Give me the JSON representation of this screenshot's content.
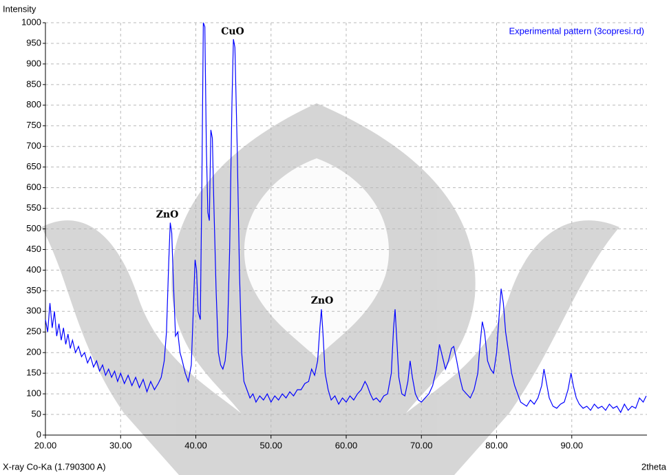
{
  "chart_data": {
    "type": "line",
    "y_label": "Intensity",
    "x_label": "2theta",
    "footer": "X-ray Co-Ka (1.790300 A)",
    "annotations": [
      "ZnO",
      "CuO",
      "ZnO"
    ],
    "xlim": [
      20,
      100
    ],
    "ylim": [
      0,
      1000
    ],
    "xticks": [
      {
        "value": 20,
        "label": "20.00"
      },
      {
        "value": 30,
        "label": "30.00"
      },
      {
        "value": 40,
        "label": "40.00"
      },
      {
        "value": 50,
        "label": "50.00"
      },
      {
        "value": 60,
        "label": "60.00"
      },
      {
        "value": 70,
        "label": "70.00"
      },
      {
        "value": 80,
        "label": "80.00"
      },
      {
        "value": 90,
        "label": "90.00"
      }
    ],
    "yticks": [
      0,
      50,
      100,
      150,
      200,
      250,
      300,
      350,
      400,
      450,
      500,
      550,
      600,
      650,
      700,
      750,
      800,
      850,
      900,
      950,
      1000
    ],
    "grid": true,
    "legend": "top-right",
    "x": [
      20.0,
      20.3,
      20.6,
      20.9,
      21.2,
      21.5,
      21.8,
      22.1,
      22.4,
      22.7,
      23.0,
      23.3,
      23.6,
      24.0,
      24.4,
      24.8,
      25.2,
      25.6,
      26.0,
      26.4,
      26.8,
      27.2,
      27.6,
      28.0,
      28.4,
      28.8,
      29.2,
      29.6,
      30.0,
      30.5,
      31.0,
      31.5,
      32.0,
      32.5,
      33.0,
      33.5,
      34.0,
      34.5,
      35.0,
      35.4,
      35.8,
      36.1,
      36.4,
      36.6,
      36.8,
      37.0,
      37.3,
      37.6,
      37.9,
      38.2,
      38.6,
      39.0,
      39.4,
      39.7,
      39.9,
      40.1,
      40.3,
      40.6,
      40.8,
      41.0,
      41.2,
      41.4,
      41.6,
      41.8,
      42.0,
      42.2,
      42.4,
      42.7,
      43.0,
      43.3,
      43.6,
      43.9,
      44.2,
      44.5,
      44.8,
      45.0,
      45.2,
      45.5,
      45.8,
      46.1,
      46.4,
      46.8,
      47.2,
      47.6,
      48.0,
      48.5,
      49.0,
      49.5,
      50.0,
      50.5,
      51.0,
      51.5,
      52.0,
      52.5,
      53.0,
      53.5,
      54.0,
      54.5,
      55.0,
      55.4,
      55.8,
      56.2,
      56.5,
      56.7,
      56.9,
      57.2,
      57.6,
      58.0,
      58.5,
      59.0,
      59.5,
      60.0,
      60.5,
      61.0,
      61.5,
      62.0,
      62.5,
      62.8,
      63.2,
      63.6,
      64.0,
      64.5,
      65.0,
      65.5,
      66.0,
      66.3,
      66.5,
      66.7,
      67.0,
      67.4,
      67.8,
      68.2,
      68.5,
      68.8,
      69.2,
      69.6,
      70.0,
      70.5,
      71.0,
      71.5,
      72.0,
      72.4,
      72.8,
      73.2,
      73.6,
      74.0,
      74.3,
      74.7,
      75.1,
      75.5,
      76.0,
      76.5,
      77.0,
      77.5,
      77.8,
      78.1,
      78.4,
      78.8,
      79.2,
      79.6,
      80.0,
      80.3,
      80.6,
      80.9,
      81.2,
      81.6,
      82.0,
      82.4,
      82.8,
      83.2,
      83.6,
      84.0,
      84.5,
      85.0,
      85.5,
      86.0,
      86.3,
      86.6,
      87.0,
      87.5,
      88.0,
      88.5,
      89.0,
      89.5,
      89.9,
      90.2,
      90.6,
      91.0,
      91.5,
      92.0,
      92.5,
      93.0,
      93.5,
      94.0,
      94.5,
      95.0,
      95.5,
      96.0,
      96.5,
      97.0,
      97.5,
      98.0,
      98.5,
      99.0,
      99.5,
      99.9
    ],
    "series": [
      {
        "name": "Experimental pattern (3copresi.rd)",
        "color": "#0000ff",
        "values": [
          280,
          250,
          320,
          260,
          300,
          240,
          270,
          230,
          260,
          220,
          245,
          210,
          230,
          200,
          215,
          190,
          200,
          175,
          190,
          165,
          180,
          155,
          170,
          145,
          160,
          140,
          155,
          130,
          150,
          125,
          145,
          120,
          140,
          115,
          135,
          105,
          130,
          110,
          125,
          140,
          180,
          250,
          420,
          515,
          490,
          380,
          240,
          250,
          200,
          180,
          150,
          130,
          170,
          320,
          425,
          400,
          300,
          280,
          600,
          1000,
          990,
          700,
          540,
          520,
          740,
          720,
          560,
          350,
          200,
          170,
          160,
          180,
          240,
          450,
          800,
          960,
          940,
          700,
          400,
          200,
          130,
          110,
          90,
          100,
          80,
          95,
          85,
          100,
          80,
          95,
          85,
          100,
          90,
          105,
          95,
          110,
          110,
          125,
          130,
          160,
          145,
          180,
          260,
          305,
          250,
          150,
          110,
          85,
          95,
          75,
          90,
          80,
          95,
          85,
          100,
          110,
          130,
          120,
          100,
          85,
          90,
          80,
          95,
          100,
          150,
          260,
          305,
          240,
          140,
          100,
          95,
          130,
          180,
          140,
          100,
          85,
          80,
          90,
          100,
          120,
          160,
          220,
          190,
          160,
          180,
          210,
          215,
          180,
          140,
          110,
          100,
          90,
          110,
          150,
          220,
          275,
          250,
          180,
          160,
          150,
          200,
          280,
          355,
          320,
          250,
          200,
          150,
          120,
          100,
          80,
          75,
          70,
          85,
          75,
          90,
          120,
          160,
          130,
          90,
          70,
          65,
          75,
          80,
          110,
          150,
          120,
          90,
          75,
          65,
          70,
          60,
          75,
          65,
          70,
          60,
          75,
          65,
          70,
          55,
          75,
          60,
          70,
          65,
          90,
          80,
          95
        ]
      }
    ]
  }
}
